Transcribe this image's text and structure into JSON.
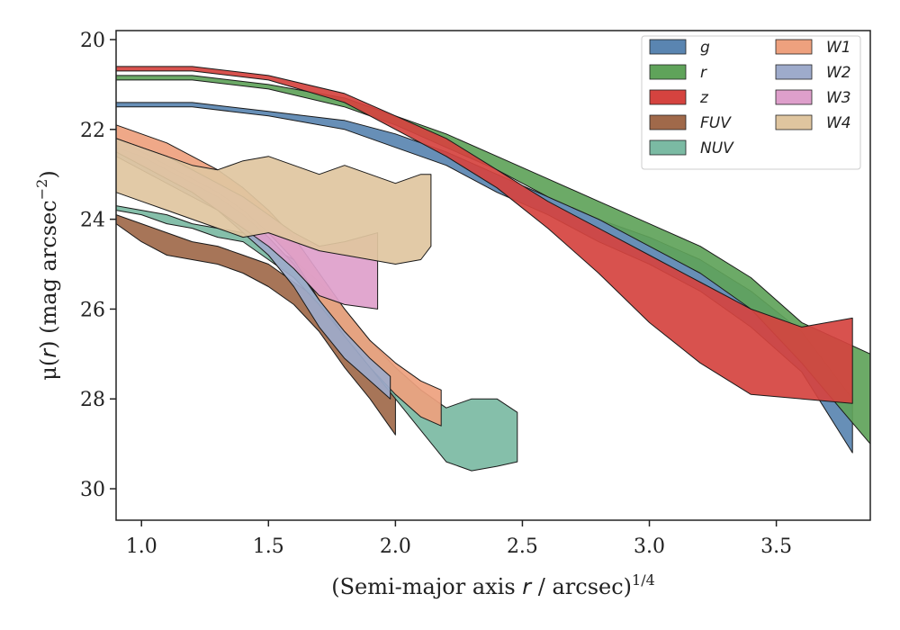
{
  "chart_data": {
    "type": "area",
    "xlabel": {
      "main": "(Semi-major axis ",
      "var": "r",
      "rest": " / arcsec)",
      "sup": "1/4"
    },
    "ylabel": {
      "main": "μ(",
      "var": "r",
      "rest": ") (mag arcsec",
      "sup": "−2",
      "close": ")"
    },
    "xlim": [
      0.9,
      3.87
    ],
    "ylim": [
      30.7,
      19.8
    ],
    "y_inverted": true,
    "xticks": [
      1.0,
      1.5,
      2.0,
      2.5,
      3.0,
      3.5
    ],
    "xtick_labels": [
      "1.0",
      "1.5",
      "2.0",
      "2.5",
      "3.0",
      "3.5"
    ],
    "yticks": [
      20,
      22,
      24,
      26,
      28,
      30
    ],
    "ytick_labels": [
      "20",
      "22",
      "24",
      "26",
      "28",
      "30"
    ],
    "grid": false,
    "legend": {
      "position": "top-right",
      "columns": 2
    },
    "series": [
      {
        "name": "FUV",
        "color": "#a0694a",
        "upper": [
          [
            0.9,
            23.9
          ],
          [
            1.0,
            24.1
          ],
          [
            1.1,
            24.3
          ],
          [
            1.2,
            24.5
          ],
          [
            1.3,
            24.6
          ],
          [
            1.4,
            24.8
          ],
          [
            1.5,
            25.0
          ],
          [
            1.6,
            25.4
          ],
          [
            1.7,
            25.8
          ],
          [
            1.8,
            26.5
          ],
          [
            1.9,
            27.2
          ],
          [
            2.0,
            27.9
          ]
        ],
        "lower": [
          [
            0.9,
            24.1
          ],
          [
            1.0,
            24.5
          ],
          [
            1.1,
            24.8
          ],
          [
            1.2,
            24.9
          ],
          [
            1.3,
            25.0
          ],
          [
            1.4,
            25.2
          ],
          [
            1.5,
            25.5
          ],
          [
            1.6,
            25.9
          ],
          [
            1.7,
            26.5
          ],
          [
            1.8,
            27.3
          ],
          [
            1.9,
            28.0
          ],
          [
            2.0,
            28.8
          ]
        ]
      },
      {
        "name": "NUV",
        "color": "#7bbaa3",
        "upper": [
          [
            0.9,
            23.7
          ],
          [
            1.0,
            23.8
          ],
          [
            1.1,
            23.9
          ],
          [
            1.2,
            24.1
          ],
          [
            1.3,
            24.2
          ],
          [
            1.4,
            24.3
          ],
          [
            1.5,
            24.6
          ],
          [
            1.6,
            24.9
          ],
          [
            1.7,
            25.4
          ],
          [
            1.8,
            26.0
          ],
          [
            1.9,
            26.7
          ],
          [
            2.0,
            27.3
          ],
          [
            2.1,
            27.8
          ],
          [
            2.2,
            28.2
          ],
          [
            2.3,
            28.0
          ],
          [
            2.4,
            28.0
          ],
          [
            2.48,
            28.3
          ]
        ],
        "lower": [
          [
            0.9,
            23.8
          ],
          [
            1.0,
            23.9
          ],
          [
            1.1,
            24.1
          ],
          [
            1.2,
            24.2
          ],
          [
            1.3,
            24.4
          ],
          [
            1.4,
            24.5
          ],
          [
            1.5,
            24.9
          ],
          [
            1.6,
            25.3
          ],
          [
            1.7,
            25.9
          ],
          [
            1.8,
            26.6
          ],
          [
            1.9,
            27.3
          ],
          [
            2.0,
            28.0
          ],
          [
            2.1,
            28.7
          ],
          [
            2.2,
            29.4
          ],
          [
            2.3,
            29.6
          ],
          [
            2.4,
            29.5
          ],
          [
            2.48,
            29.4
          ]
        ]
      },
      {
        "name": "W1",
        "color": "#eea17e",
        "upper": [
          [
            0.9,
            21.9
          ],
          [
            1.0,
            22.1
          ],
          [
            1.1,
            22.3
          ],
          [
            1.2,
            22.6
          ],
          [
            1.3,
            22.9
          ],
          [
            1.4,
            23.3
          ],
          [
            1.5,
            23.8
          ],
          [
            1.6,
            24.4
          ],
          [
            1.7,
            25.2
          ],
          [
            1.8,
            26.0
          ],
          [
            1.9,
            26.7
          ],
          [
            2.0,
            27.2
          ],
          [
            2.1,
            27.6
          ],
          [
            2.18,
            27.8
          ]
        ],
        "lower": [
          [
            0.9,
            22.2
          ],
          [
            1.0,
            22.5
          ],
          [
            1.1,
            22.8
          ],
          [
            1.2,
            23.1
          ],
          [
            1.3,
            23.4
          ],
          [
            1.4,
            23.8
          ],
          [
            1.5,
            24.3
          ],
          [
            1.6,
            24.9
          ],
          [
            1.7,
            25.8
          ],
          [
            1.8,
            26.6
          ],
          [
            1.9,
            27.3
          ],
          [
            2.0,
            27.9
          ],
          [
            2.1,
            28.4
          ],
          [
            2.18,
            28.6
          ]
        ]
      },
      {
        "name": "W2",
        "color": "#9eabcb",
        "upper": [
          [
            0.9,
            22.4
          ],
          [
            1.0,
            22.6
          ],
          [
            1.1,
            22.9
          ],
          [
            1.2,
            23.2
          ],
          [
            1.3,
            23.5
          ],
          [
            1.4,
            23.9
          ],
          [
            1.5,
            24.4
          ],
          [
            1.6,
            25.0
          ],
          [
            1.7,
            25.8
          ],
          [
            1.8,
            26.5
          ],
          [
            1.9,
            27.1
          ],
          [
            1.98,
            27.5
          ]
        ],
        "lower": [
          [
            0.9,
            22.6
          ],
          [
            1.0,
            22.9
          ],
          [
            1.1,
            23.2
          ],
          [
            1.2,
            23.5
          ],
          [
            1.3,
            23.8
          ],
          [
            1.4,
            24.3
          ],
          [
            1.5,
            24.8
          ],
          [
            1.6,
            25.5
          ],
          [
            1.7,
            26.4
          ],
          [
            1.8,
            27.1
          ],
          [
            1.9,
            27.6
          ],
          [
            1.98,
            28.0
          ]
        ]
      },
      {
        "name": "W3",
        "color": "#de9fcb",
        "upper": [
          [
            0.9,
            22.2
          ],
          [
            1.0,
            22.4
          ],
          [
            1.1,
            22.6
          ],
          [
            1.2,
            22.9
          ],
          [
            1.3,
            23.2
          ],
          [
            1.4,
            23.5
          ],
          [
            1.5,
            23.9
          ],
          [
            1.6,
            24.3
          ],
          [
            1.7,
            24.6
          ],
          [
            1.8,
            24.5
          ],
          [
            1.93,
            24.3
          ]
        ],
        "lower": [
          [
            0.9,
            22.5
          ],
          [
            1.0,
            22.8
          ],
          [
            1.1,
            23.1
          ],
          [
            1.2,
            23.4
          ],
          [
            1.3,
            23.8
          ],
          [
            1.4,
            24.2
          ],
          [
            1.5,
            24.6
          ],
          [
            1.6,
            25.1
          ],
          [
            1.7,
            25.7
          ],
          [
            1.8,
            25.9
          ],
          [
            1.93,
            26.0
          ]
        ]
      },
      {
        "name": "W4",
        "color": "#dfc59f",
        "upper": [
          [
            0.9,
            22.2
          ],
          [
            1.0,
            22.4
          ],
          [
            1.1,
            22.6
          ],
          [
            1.2,
            22.8
          ],
          [
            1.3,
            22.9
          ],
          [
            1.4,
            22.7
          ],
          [
            1.5,
            22.6
          ],
          [
            1.6,
            22.8
          ],
          [
            1.7,
            23.0
          ],
          [
            1.8,
            22.8
          ],
          [
            1.9,
            23.0
          ],
          [
            2.0,
            23.2
          ],
          [
            2.1,
            23.0
          ],
          [
            2.14,
            23.0
          ]
        ],
        "lower": [
          [
            0.9,
            23.4
          ],
          [
            1.0,
            23.6
          ],
          [
            1.1,
            23.8
          ],
          [
            1.2,
            24.0
          ],
          [
            1.3,
            24.2
          ],
          [
            1.4,
            24.4
          ],
          [
            1.5,
            24.3
          ],
          [
            1.6,
            24.5
          ],
          [
            1.7,
            24.7
          ],
          [
            1.8,
            24.8
          ],
          [
            1.9,
            24.9
          ],
          [
            2.0,
            25.0
          ],
          [
            2.1,
            24.9
          ],
          [
            2.14,
            24.6
          ]
        ]
      },
      {
        "name": "g",
        "color": "#5a85b1",
        "upper": [
          [
            0.9,
            21.4
          ],
          [
            1.2,
            21.4
          ],
          [
            1.5,
            21.6
          ],
          [
            1.8,
            21.8
          ],
          [
            2.0,
            22.1
          ],
          [
            2.2,
            22.5
          ],
          [
            2.4,
            23.0
          ],
          [
            2.6,
            23.5
          ],
          [
            2.8,
            24.0
          ],
          [
            3.0,
            24.4
          ],
          [
            3.2,
            24.9
          ],
          [
            3.4,
            25.6
          ],
          [
            3.6,
            26.5
          ],
          [
            3.8,
            28.0
          ]
        ],
        "lower": [
          [
            0.9,
            21.5
          ],
          [
            1.2,
            21.5
          ],
          [
            1.5,
            21.7
          ],
          [
            1.8,
            22.0
          ],
          [
            2.0,
            22.4
          ],
          [
            2.2,
            22.8
          ],
          [
            2.4,
            23.4
          ],
          [
            2.6,
            23.9
          ],
          [
            2.8,
            24.5
          ],
          [
            3.0,
            25.0
          ],
          [
            3.2,
            25.6
          ],
          [
            3.4,
            26.4
          ],
          [
            3.6,
            27.4
          ],
          [
            3.8,
            29.2
          ]
        ]
      },
      {
        "name": "r",
        "color": "#5fa35a",
        "upper": [
          [
            0.9,
            20.8
          ],
          [
            1.2,
            20.8
          ],
          [
            1.5,
            21.0
          ],
          [
            1.8,
            21.3
          ],
          [
            2.0,
            21.7
          ],
          [
            2.2,
            22.1
          ],
          [
            2.4,
            22.6
          ],
          [
            2.6,
            23.1
          ],
          [
            2.8,
            23.6
          ],
          [
            3.0,
            24.1
          ],
          [
            3.2,
            24.6
          ],
          [
            3.4,
            25.3
          ],
          [
            3.6,
            26.3
          ],
          [
            3.87,
            27.0
          ]
        ],
        "lower": [
          [
            0.9,
            20.9
          ],
          [
            1.2,
            20.9
          ],
          [
            1.5,
            21.1
          ],
          [
            1.8,
            21.5
          ],
          [
            2.0,
            21.9
          ],
          [
            2.2,
            22.4
          ],
          [
            2.4,
            22.9
          ],
          [
            2.6,
            23.5
          ],
          [
            2.8,
            24.0
          ],
          [
            3.0,
            24.6
          ],
          [
            3.2,
            25.2
          ],
          [
            3.4,
            26.0
          ],
          [
            3.6,
            27.2
          ],
          [
            3.87,
            29.0
          ]
        ]
      },
      {
        "name": "z",
        "color": "#d5433f",
        "upper": [
          [
            0.9,
            20.6
          ],
          [
            1.2,
            20.6
          ],
          [
            1.5,
            20.8
          ],
          [
            1.8,
            21.2
          ],
          [
            2.0,
            21.7
          ],
          [
            2.2,
            22.2
          ],
          [
            2.4,
            22.9
          ],
          [
            2.6,
            23.6
          ],
          [
            2.8,
            24.2
          ],
          [
            3.0,
            24.8
          ],
          [
            3.2,
            25.4
          ],
          [
            3.4,
            26.0
          ],
          [
            3.6,
            26.4
          ],
          [
            3.8,
            26.2
          ]
        ],
        "lower": [
          [
            0.9,
            20.7
          ],
          [
            1.2,
            20.7
          ],
          [
            1.5,
            20.9
          ],
          [
            1.8,
            21.4
          ],
          [
            2.0,
            22.0
          ],
          [
            2.2,
            22.6
          ],
          [
            2.4,
            23.3
          ],
          [
            2.6,
            24.2
          ],
          [
            2.8,
            25.2
          ],
          [
            3.0,
            26.3
          ],
          [
            3.2,
            27.2
          ],
          [
            3.4,
            27.9
          ],
          [
            3.6,
            28.0
          ],
          [
            3.8,
            28.1
          ]
        ]
      }
    ]
  }
}
